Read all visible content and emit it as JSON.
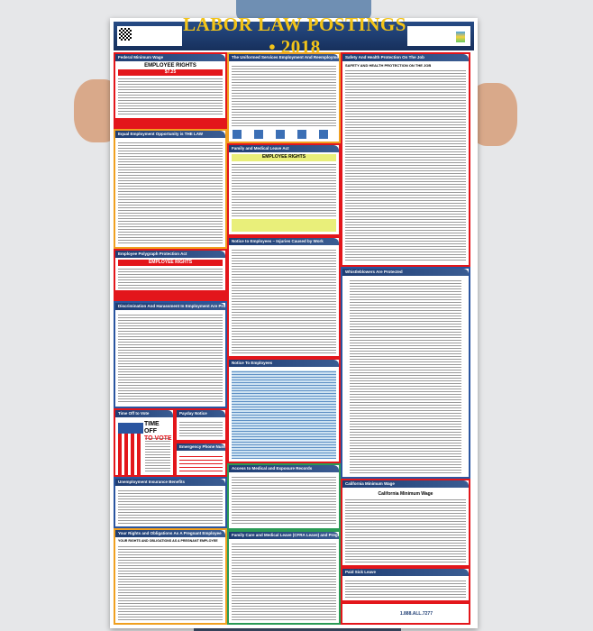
{
  "poster": {
    "title": "LABOR LAW POSTINGS • 2018",
    "colors": {
      "header": "#1d3a6b",
      "title": "#f2c318",
      "border": "#e3161b"
    },
    "sections": {
      "federal_min_wage": {
        "title": "Federal Minimum Wage",
        "headline": "EMPLOYEE RIGHTS",
        "wage": "$7.25"
      },
      "userra": {
        "title": "The Uniformed Services Employment And Reemployment Rights Act"
      },
      "safety": {
        "title": "Safety And Health Protection On The Job",
        "headline": "SAFETY AND HEALTH PROTECTION ON THE JOB"
      },
      "eeo": {
        "title": "Equal Employment Opportunity is THE LAW"
      },
      "fmla": {
        "title": "Family and Medical Leave Act",
        "headline": "EMPLOYEE RIGHTS"
      },
      "polygraph": {
        "title": "Employee Polygraph Protection Act",
        "headline": "EMPLOYEE RIGHTS"
      },
      "injuries": {
        "title": "Notice to Employees – Injuries Caused by Work"
      },
      "whistleblowers": {
        "title": "Whistleblowers Are Protected"
      },
      "discrimination": {
        "title": "Discrimination And Harassment In Employment Are Prohibited By Law"
      },
      "notice": {
        "title": "Notice To Employees"
      },
      "vote": {
        "title": "Time Off to Vote",
        "line1": "TIME OFF",
        "line2": "TO VOTE"
      },
      "payday": {
        "title": "Payday Notice"
      },
      "emergency": {
        "title": "Emergency Phone Numbers"
      },
      "unemployment": {
        "title": "Unemployment Insurance Benefits"
      },
      "medical_records": {
        "title": "Access to Medical and Exposure Records"
      },
      "ca_min_wage": {
        "title": "California Minimum Wage",
        "headline": "California Minimum Wage"
      },
      "pregnant": {
        "title": "Your Rights and Obligations As A Pregnant Employee",
        "headline": "YOUR RIGHTS AND OBLIGATIONS AS A PREGNANT EMPLOYEE"
      },
      "cfra": {
        "title": "Family Care and Medical Leave (CFRA Leave) and Pregnancy Disability Leave"
      },
      "paid_sick": {
        "title": "Paid Sick Leave"
      }
    },
    "footer": {
      "phone": "1.888.ALL.7277"
    }
  }
}
